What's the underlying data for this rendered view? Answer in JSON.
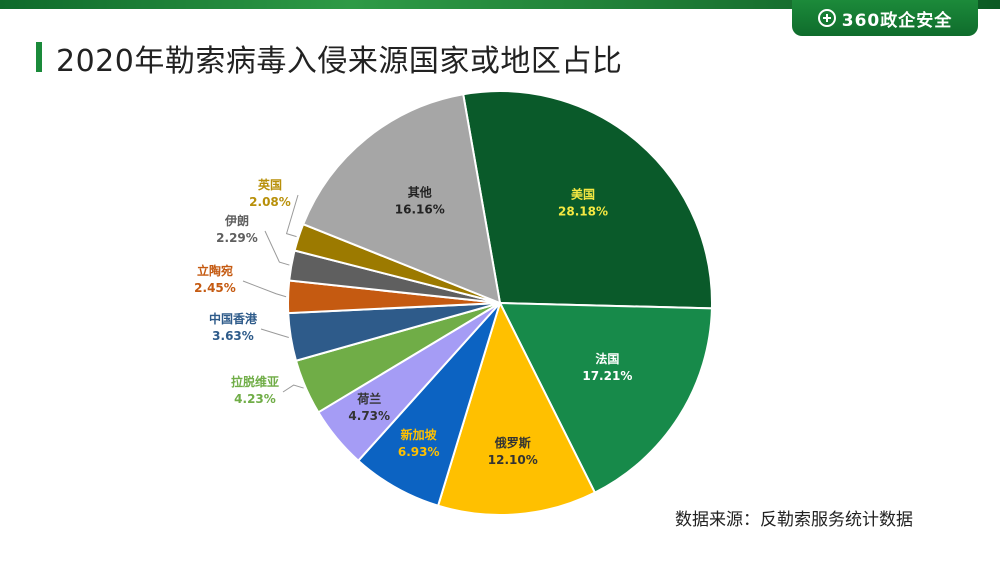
{
  "header": {
    "brand": "360政企安全",
    "title": "2020年勒索病毒入侵来源国家或地区占比"
  },
  "source": "数据来源：反勒索服务统计数据",
  "chart_data": {
    "type": "pie",
    "title": "2020年勒索病毒入侵来源国家或地区占比",
    "unit": "%",
    "slices": [
      {
        "label": "美国",
        "value": 28.18,
        "value_label": "28.18%",
        "color": "#0a5a2a",
        "label_color": "#f4e842"
      },
      {
        "label": "法国",
        "value": 17.21,
        "value_label": "17.21%",
        "color": "#178a4a",
        "label_color": "#ffffff"
      },
      {
        "label": "俄罗斯",
        "value": 12.1,
        "value_label": "12.10%",
        "color": "#ffc000",
        "label_color": "#333333"
      },
      {
        "label": "新加坡",
        "value": 6.93,
        "value_label": "6.93%",
        "color": "#0c63c2",
        "label_color": "#ffc000"
      },
      {
        "label": "荷兰",
        "value": 4.73,
        "value_label": "4.73%",
        "color": "#a59cf5",
        "label_color": "#333333"
      },
      {
        "label": "拉脱维亚",
        "value": 4.23,
        "value_label": "4.23%",
        "color": "#70ad47",
        "label_color": "#70ad47"
      },
      {
        "label": "中国香港",
        "value": 3.63,
        "value_label": "3.63%",
        "color": "#2e5b8a",
        "label_color": "#2e5b8a"
      },
      {
        "label": "立陶宛",
        "value": 2.45,
        "value_label": "2.45%",
        "color": "#c55a11",
        "label_color": "#c55a11"
      },
      {
        "label": "伊朗",
        "value": 2.29,
        "value_label": "2.29%",
        "color": "#5f5f5f",
        "label_color": "#5f5f5f"
      },
      {
        "label": "英国",
        "value": 2.08,
        "value_label": "2.08%",
        "color": "#9c7a00",
        "label_color": "#b8900a"
      },
      {
        "label": "其他",
        "value": 16.16,
        "value_label": "16.16%",
        "color": "#a6a6a6",
        "label_color": "#222222"
      }
    ]
  }
}
